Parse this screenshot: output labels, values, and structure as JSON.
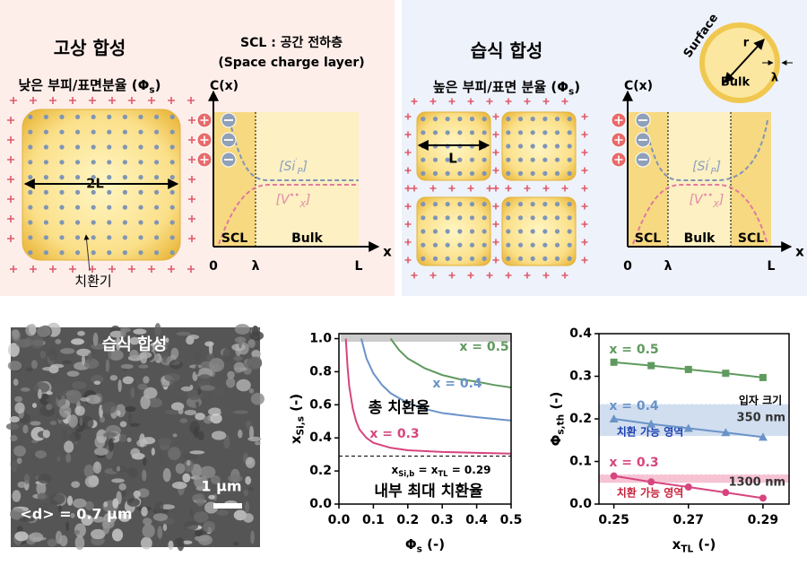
{
  "solid": {
    "title": "고상 합성",
    "phi_label": [
      "낮은 부피/표면분율 (Φ",
      "s",
      ")"
    ],
    "dimension": "2L",
    "dopant": "치환기"
  },
  "scl": {
    "title": "SCL : 공간 전하층",
    "subtitle": "(Space charge layer)"
  },
  "wet": {
    "title": "습식 합성",
    "phi_label": [
      "높은 부피/표면 분율 (Φ",
      "s",
      ")"
    ],
    "dimension": "L"
  },
  "profile_1": {
    "y_axis": "C(x)",
    "x_axis": "x",
    "si": [
      "[Si",
      "′",
      "P",
      "]"
    ],
    "vac": [
      "[V",
      "••",
      "X",
      "]"
    ],
    "regions": [
      "SCL",
      "Bulk"
    ],
    "ticks": [
      "0",
      "λ",
      "L"
    ]
  },
  "profile_2": {
    "y_axis": "C(x)",
    "x_axis": "x",
    "si": [
      "[Si",
      "′",
      "P",
      "]"
    ],
    "vac": [
      "[V",
      "••",
      "X",
      "]"
    ],
    "regions": [
      "SCL",
      "Bulk",
      "SCL"
    ],
    "ticks": [
      "0",
      "λ",
      "L"
    ]
  },
  "inset": {
    "surface": "Surface",
    "radius": "r",
    "layer": "λ",
    "core": "Bulk"
  },
  "sem": {
    "title": "습식 합성",
    "scale": "1 μm",
    "size": "<d> = 0.7 μm"
  },
  "chart_data": [
    {
      "type": "line",
      "xlabel": [
        "Φ",
        "s",
        " (-)"
      ],
      "ylabel": [
        "x",
        "Si,s",
        " (-)"
      ],
      "xlim": [
        0,
        0.5
      ],
      "ylim": [
        0,
        1.03
      ],
      "xticks": [
        {
          "value": 0,
          "label": "0.0"
        },
        0.1,
        0.2,
        0.3,
        0.4,
        0.5
      ],
      "yticks": [
        {
          "value": 0,
          "label": "0.0"
        },
        0.2,
        0.4,
        0.6,
        0.8,
        {
          "value": 1,
          "label": "1.0"
        }
      ],
      "series": [
        {
          "name": "x = 0.5",
          "color": "#5f9a5f",
          "x": [
            0.15,
            0.175,
            0.2,
            0.25,
            0.3,
            0.35,
            0.4,
            0.45,
            0.5
          ],
          "values": [
            1.0,
            0.93,
            0.88,
            0.82,
            0.78,
            0.755,
            0.74,
            0.72,
            0.705
          ]
        },
        {
          "name": "x = 0.4",
          "color": "#6a93c8",
          "x": [
            0.065,
            0.08,
            0.1,
            0.125,
            0.15,
            0.2,
            0.25,
            0.3,
            0.4,
            0.5
          ],
          "values": [
            1.0,
            0.88,
            0.79,
            0.72,
            0.67,
            0.61,
            0.575,
            0.55,
            0.525,
            0.505
          ]
        },
        {
          "name": "x = 0.3",
          "color": "#d6457e",
          "x": [
            0.02,
            0.025,
            0.03,
            0.04,
            0.05,
            0.06,
            0.08,
            0.1,
            0.15,
            0.2,
            0.3,
            0.4,
            0.5
          ],
          "values": [
            1.0,
            0.83,
            0.71,
            0.58,
            0.5,
            0.45,
            0.4,
            0.37,
            0.34,
            0.325,
            0.315,
            0.31,
            0.305
          ]
        }
      ],
      "reference": {
        "value": 0.29,
        "label": [
          "x",
          "Si,b",
          " = x",
          "TL",
          " = 0.29"
        ]
      },
      "annotations": [
        "총 치환율",
        "내부 최대 치환율"
      ]
    },
    {
      "type": "line",
      "xlabel": [
        "x",
        "TL",
        " (-)"
      ],
      "ylabel": [
        "Φ",
        "s,th",
        " (-)"
      ],
      "xlim": [
        0.246,
        0.297
      ],
      "ylim": [
        0,
        0.4
      ],
      "xticks": [
        0.25,
        0.27,
        0.29
      ],
      "yticks": [
        {
          "value": 0,
          "label": "0.0"
        },
        0.1,
        0.2,
        0.3,
        0.4
      ],
      "x": [
        0.25,
        0.26,
        0.27,
        0.28,
        0.29
      ],
      "series": [
        {
          "name": "x = 0.5",
          "color": "#5f9a5f",
          "marker": "square",
          "values": [
            0.333,
            0.325,
            0.316,
            0.307,
            0.297
          ]
        },
        {
          "name": "x = 0.4",
          "color": "#6a93c8",
          "marker": "triangle",
          "values": [
            0.2,
            0.188,
            0.178,
            0.168,
            0.157
          ]
        },
        {
          "name": "x = 0.3",
          "color": "#d6457e",
          "marker": "circle",
          "values": [
            0.066,
            0.052,
            0.04,
            0.027,
            0.014
          ]
        }
      ],
      "bands": [
        {
          "range": [
            0.16,
            0.235
          ],
          "color": "#c9d8ec",
          "size": "350 nm",
          "label": "치환 가능 영역",
          "label_color": "#1a3fb0"
        },
        {
          "range": [
            0.05,
            0.07
          ],
          "color": "#f5b9cb",
          "size": "1300 nm",
          "label": "치환 가능 영역",
          "label_color": "#c8203a"
        }
      ],
      "annotations": [
        "입자 크기"
      ]
    }
  ]
}
